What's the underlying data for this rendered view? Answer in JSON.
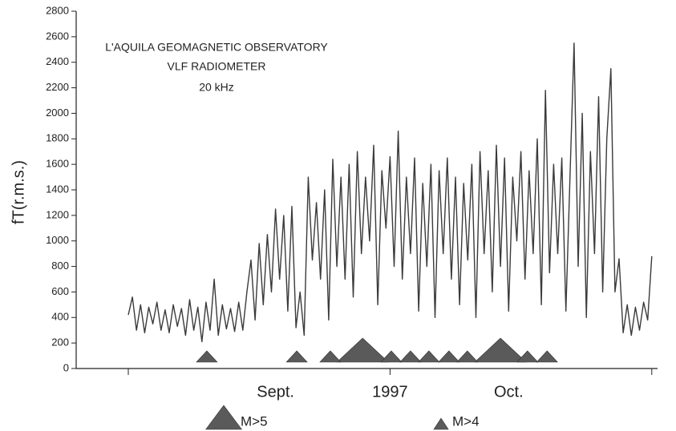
{
  "chart_data": {
    "type": "line",
    "title": [
      "L'AQUILA GEOMAGNETIC OBSERVATORY",
      "VLF RADIOMETER",
      "20 kHz"
    ],
    "y_label": "fT(r.m.s.)",
    "ylim": [
      0,
      2800
    ],
    "yticks": [
      0,
      200,
      400,
      600,
      800,
      1000,
      1200,
      1400,
      1600,
      1800,
      2000,
      2200,
      2400,
      2600,
      2800
    ],
    "categories": [
      null,
      null,
      null,
      null,
      null,
      null,
      null,
      null,
      null,
      null,
      null,
      null,
      null,
      null,
      null,
      null,
      null,
      null,
      null,
      null,
      null,
      null,
      null,
      null,
      null,
      null,
      null,
      null,
      null,
      null,
      null,
      null,
      null,
      null,
      null,
      null,
      "Sept.",
      null,
      null,
      null,
      null,
      null,
      null,
      null,
      null,
      null,
      null,
      null,
      null,
      null,
      null,
      null,
      null,
      null,
      null,
      null,
      null,
      null,
      null,
      null,
      null,
      null,
      null,
      null,
      "1997",
      null,
      null,
      null,
      null,
      null,
      null,
      null,
      null,
      null,
      null,
      null,
      null,
      null,
      null,
      null,
      null,
      null,
      null,
      null,
      null,
      null,
      null,
      null,
      null,
      null,
      null,
      null,
      null,
      "Oct.",
      null,
      null,
      null,
      null,
      null,
      null,
      null,
      null,
      null,
      null,
      null,
      null,
      null,
      null,
      null,
      null,
      null,
      null,
      null,
      null,
      null,
      null,
      null,
      null,
      null,
      null,
      null,
      null,
      null,
      null,
      null,
      null,
      null,
      null,
      null
    ],
    "series": [
      {
        "color": "#3a3a3a",
        "values": [
          420,
          560,
          300,
          500,
          280,
          480,
          350,
          520,
          300,
          460,
          280,
          500,
          330,
          470,
          260,
          540,
          300,
          480,
          210,
          520,
          300,
          700,
          260,
          500,
          310,
          470,
          290,
          520,
          300,
          600,
          850,
          380,
          980,
          500,
          1050,
          600,
          1250,
          700,
          1200,
          450,
          1270,
          320,
          600,
          260,
          1500,
          850,
          1300,
          700,
          1400,
          380,
          1640,
          800,
          1500,
          700,
          1600,
          560,
          1700,
          900,
          1500,
          1000,
          1750,
          500,
          1550,
          1100,
          1660,
          800,
          1860,
          700,
          1500,
          900,
          1650,
          450,
          1450,
          800,
          1600,
          400,
          1550,
          900,
          1650,
          700,
          1500,
          500,
          1450,
          850,
          1600,
          400,
          1700,
          900,
          1550,
          600,
          1750,
          800,
          1650,
          450,
          1500,
          1000,
          1700,
          700,
          1550,
          900,
          1800,
          500,
          2180,
          750,
          1600,
          900,
          1650,
          450,
          1500,
          2550,
          800,
          2000,
          400,
          1700,
          900,
          2130,
          600,
          1800,
          2350,
          600,
          860,
          280,
          500,
          260,
          480,
          300,
          520,
          380,
          880
        ]
      }
    ],
    "markers": [
      {
        "name": "M>5",
        "color": "#5a5a5a",
        "x": [
          57.3,
          91
        ]
      },
      {
        "name": "M>4",
        "color": "#5a5a5a",
        "x": [
          19.2,
          41.2,
          49.4,
          64.3,
          69,
          73.5,
          78.4,
          82.9,
          97.6,
          102.4
        ]
      }
    ]
  }
}
